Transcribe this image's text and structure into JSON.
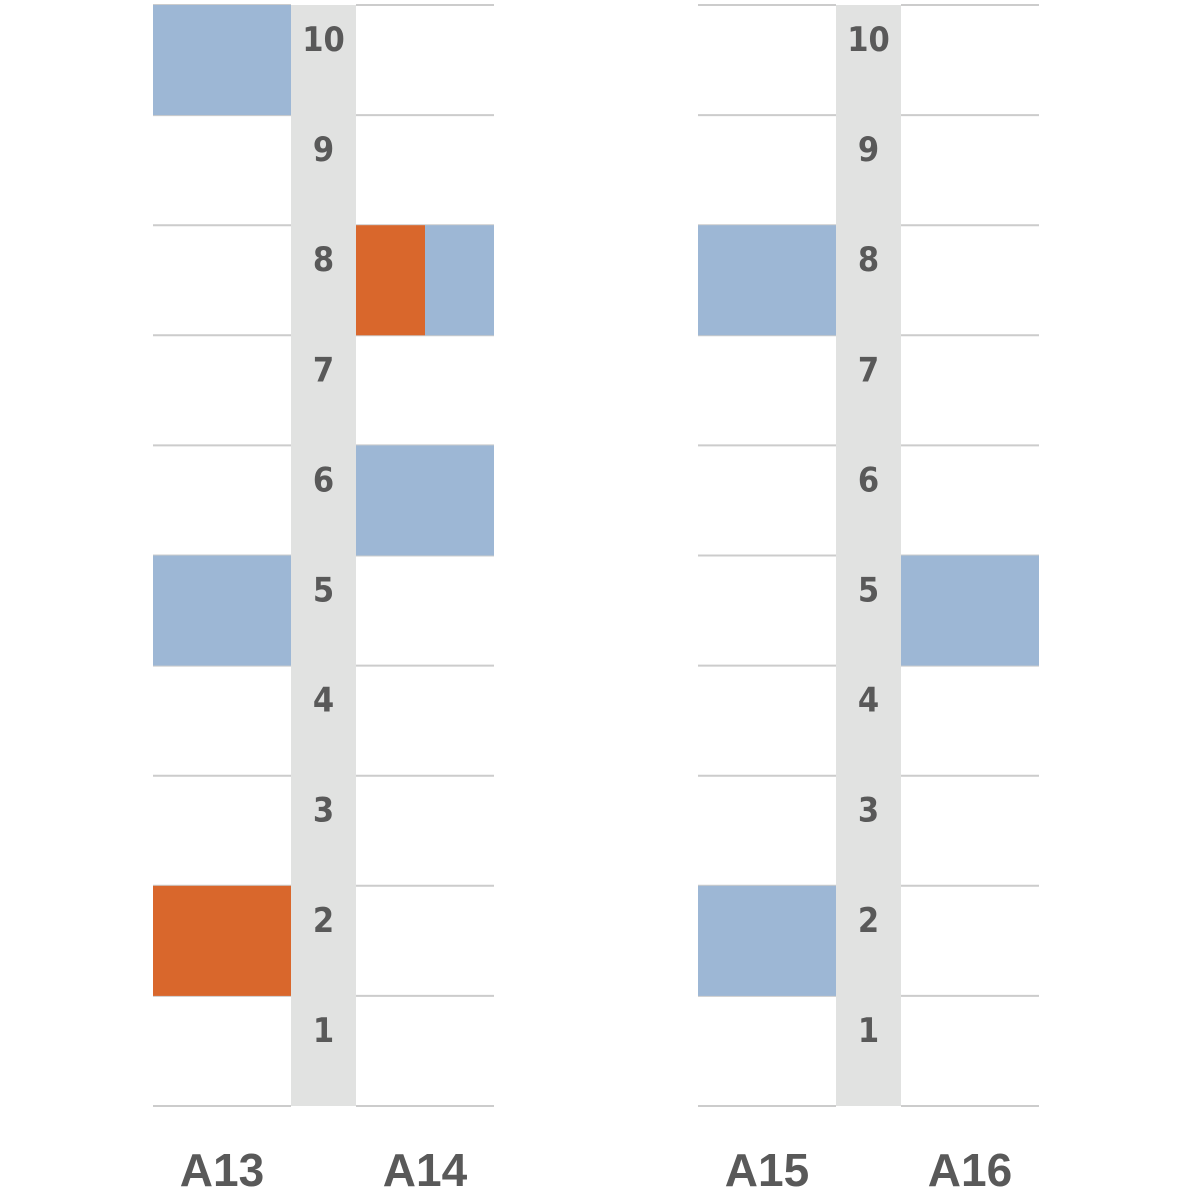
{
  "chart_data": {
    "type": "heatmap",
    "levels": [
      1,
      2,
      3,
      4,
      5,
      6,
      7,
      8,
      9,
      10
    ],
    "level_labels": [
      "1",
      "2",
      "3",
      "4",
      "5",
      "6",
      "7",
      "8",
      "9",
      "10"
    ],
    "colors": {
      "blue": "#9db7d5",
      "orange": "#d9672c",
      "spine": "#e1e2e1",
      "grid": "#cccccc",
      "text": "#595959"
    },
    "groups": [
      {
        "columns": [
          {
            "label": "A13",
            "cells": [
              {
                "level": 10,
                "color": "blue"
              },
              {
                "level": 5,
                "color": "blue"
              },
              {
                "level": 2,
                "color": "orange"
              }
            ]
          },
          {
            "label": "A14",
            "cells": [
              {
                "level": 8,
                "color": "orange",
                "part": "left"
              },
              {
                "level": 8,
                "color": "blue",
                "part": "right"
              },
              {
                "level": 6,
                "color": "blue"
              }
            ]
          }
        ]
      },
      {
        "columns": [
          {
            "label": "A15",
            "cells": [
              {
                "level": 8,
                "color": "blue"
              },
              {
                "level": 2,
                "color": "blue"
              }
            ]
          },
          {
            "label": "A16",
            "cells": [
              {
                "level": 5,
                "color": "blue"
              }
            ]
          }
        ]
      }
    ]
  }
}
